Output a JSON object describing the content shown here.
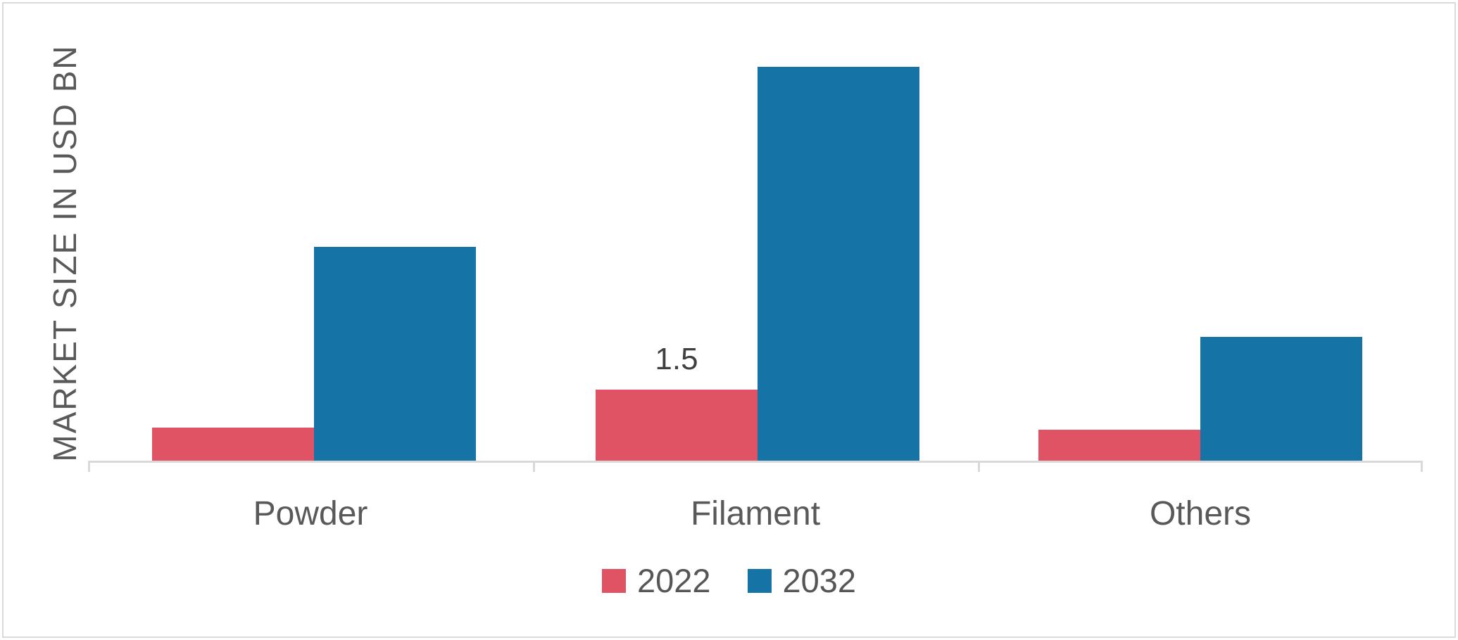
{
  "window": {
    "background": "#FFFFFF",
    "frame_border_color": "#DBDBDB"
  },
  "chart_data": {
    "type": "bar",
    "title": "",
    "ylabel": "MARKET SIZE IN USD BN",
    "xlabel": "",
    "categories": [
      "Powder",
      "Filament",
      "Others"
    ],
    "series": [
      {
        "name": "2022",
        "color": "#E05365",
        "values": [
          0.7,
          1.5,
          0.65
        ]
      },
      {
        "name": "2032",
        "color": "#1673A6",
        "values": [
          4.5,
          8.3,
          2.6
        ]
      }
    ],
    "ylim": [
      0,
      9.7
    ],
    "grid": false,
    "y_tick_labels_visible": false,
    "axis_line_color": "#D9D9D9",
    "tick_positions": "category boundaries",
    "legend_position": "bottom",
    "text_color": "#595959",
    "data_labels": [
      {
        "series": "2022",
        "category": "Filament",
        "text": "1.5"
      }
    ]
  }
}
